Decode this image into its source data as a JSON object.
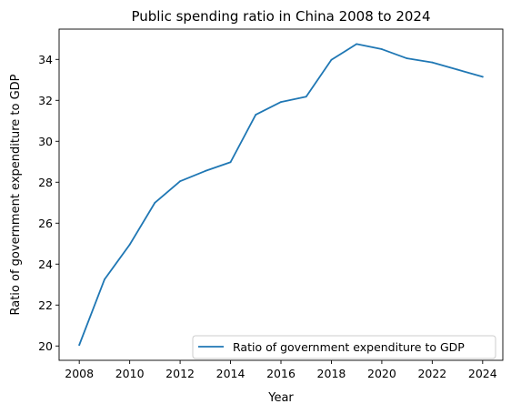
{
  "chart_data": {
    "type": "line",
    "title": "Public spending ratio in China 2008 to 2024",
    "xlabel": "Year",
    "ylabel": "Ratio of government expenditure to GDP",
    "x": [
      2008,
      2009,
      2010,
      2011,
      2012,
      2013,
      2014,
      2015,
      2016,
      2017,
      2018,
      2019,
      2020,
      2021,
      2022,
      2023,
      2024
    ],
    "series": [
      {
        "name": "Ratio of government expenditure to GDP",
        "color": "#1f77b4",
        "values": [
          20.05,
          23.25,
          24.95,
          27.0,
          28.05,
          28.55,
          28.98,
          31.3,
          31.92,
          32.18,
          33.98,
          34.75,
          34.5,
          34.05,
          33.85,
          33.5,
          33.15
        ]
      }
    ],
    "xlim": [
      2007.2,
      2024.8
    ],
    "ylim": [
      19.3,
      35.48
    ],
    "xticks": [
      "2008",
      "2010",
      "2012",
      "2014",
      "2016",
      "2018",
      "2020",
      "2022",
      "2024"
    ],
    "yticks": [
      "20",
      "22",
      "24",
      "26",
      "28",
      "30",
      "32",
      "34"
    ],
    "grid": false,
    "legend_position": "lower-right"
  }
}
